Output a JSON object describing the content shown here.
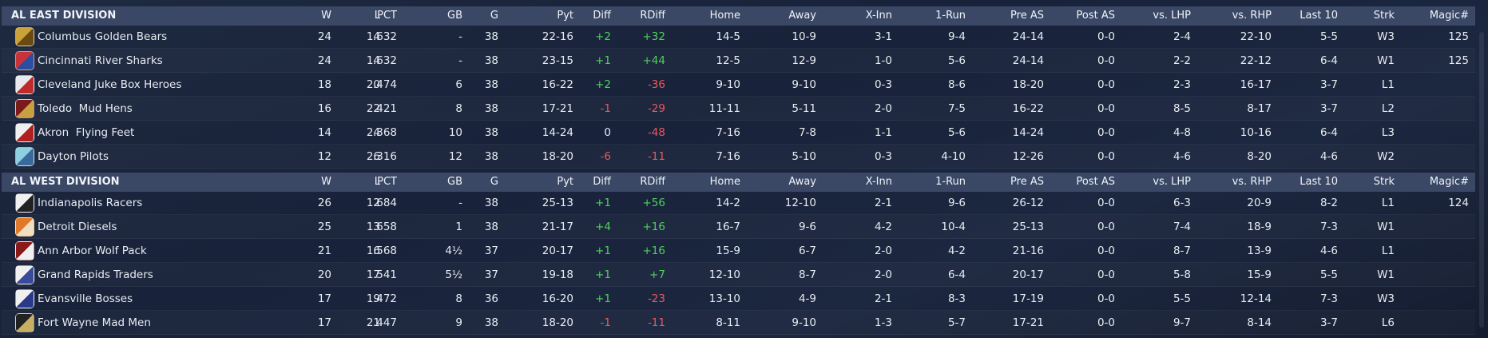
{
  "divisions": [
    {
      "title": "AL EAST DIVISION",
      "columns": [
        "W",
        "L",
        "PCT",
        "GB",
        "G",
        "Pyt",
        "Diff",
        "RDiff",
        "Home",
        "Away",
        "X-Inn",
        "1-Run",
        "Pre AS",
        "Post AS",
        "vs. LHP",
        "vs. RHP",
        "Last 10",
        "Strk",
        "Magic#"
      ],
      "rows": [
        [
          "Columbus Golden Bears",
          "24",
          "14",
          ".632",
          "-",
          "38",
          "22-16",
          "+2",
          "+32",
          "14-5",
          "10-9",
          "3-1",
          "9-4",
          "24-14",
          "0-0",
          "2-4",
          "22-10",
          "5-5",
          "W3",
          "125"
        ],
        [
          "Cincinnati River Sharks",
          "24",
          "14",
          ".632",
          "-",
          "38",
          "23-15",
          "+1",
          "+44",
          "12-5",
          "12-9",
          "1-0",
          "5-6",
          "24-14",
          "0-0",
          "2-2",
          "22-12",
          "6-4",
          "W1",
          "125"
        ],
        [
          "Cleveland Juke Box Heroes",
          "18",
          "20",
          ".474",
          "6",
          "38",
          "16-22",
          "+2",
          "-36",
          "9-10",
          "9-10",
          "0-3",
          "8-6",
          "18-20",
          "0-0",
          "2-3",
          "16-17",
          "3-7",
          "L1",
          null
        ],
        [
          "Toledo  Mud Hens",
          "16",
          "22",
          ".421",
          "8",
          "38",
          "17-21",
          "-1",
          "-29",
          "11-11",
          "5-11",
          "2-0",
          "7-5",
          "16-22",
          "0-0",
          "8-5",
          "8-17",
          "3-7",
          "L2",
          null
        ],
        [
          "Akron  Flying Feet",
          "14",
          "24",
          ".368",
          "10",
          "38",
          "14-24",
          "0",
          "-48",
          "7-16",
          "7-8",
          "1-1",
          "5-6",
          "14-24",
          "0-0",
          "4-8",
          "10-16",
          "6-4",
          "L3",
          null
        ],
        [
          "Dayton Pilots",
          "12",
          "26",
          ".316",
          "12",
          "38",
          "18-20",
          "-6",
          "-11",
          "7-16",
          "5-10",
          "0-3",
          "4-10",
          "12-26",
          "0-0",
          "4-6",
          "8-20",
          "4-6",
          "W2",
          null
        ]
      ]
    },
    {
      "title": "AL WEST DIVISION",
      "columns": [
        "W",
        "L",
        "PCT",
        "GB",
        "G",
        "Pyt",
        "Diff",
        "RDiff",
        "Home",
        "Away",
        "X-Inn",
        "1-Run",
        "Pre AS",
        "Post AS",
        "vs. LHP",
        "vs. RHP",
        "Last 10",
        "Strk",
        "Magic#"
      ],
      "rows": [
        [
          "Indianapolis Racers",
          "26",
          "12",
          ".684",
          "-",
          "38",
          "25-13",
          "+1",
          "+56",
          "14-2",
          "12-10",
          "2-1",
          "9-6",
          "26-12",
          "0-0",
          "6-3",
          "20-9",
          "8-2",
          "L1",
          "124"
        ],
        [
          "Detroit Diesels",
          "25",
          "13",
          ".658",
          "1",
          "38",
          "21-17",
          "+4",
          "+16",
          "16-7",
          "9-6",
          "4-2",
          "10-4",
          "25-13",
          "0-0",
          "7-4",
          "18-9",
          "7-3",
          "W1",
          null
        ],
        [
          "Ann Arbor Wolf Pack",
          "21",
          "16",
          ".568",
          "4½",
          "37",
          "20-17",
          "+1",
          "+16",
          "15-9",
          "6-7",
          "2-0",
          "4-2",
          "21-16",
          "0-0",
          "8-7",
          "13-9",
          "4-6",
          "L1",
          null
        ],
        [
          "Grand Rapids Traders",
          "20",
          "17",
          ".541",
          "5½",
          "37",
          "19-18",
          "+1",
          "+7",
          "12-10",
          "8-7",
          "2-0",
          "6-4",
          "20-17",
          "0-0",
          "5-8",
          "15-9",
          "5-5",
          "W1",
          null
        ],
        [
          "Evansville Bosses",
          "17",
          "19",
          ".472",
          "8",
          "36",
          "16-20",
          "+1",
          "-23",
          "13-10",
          "4-9",
          "2-1",
          "8-3",
          "17-19",
          "0-0",
          "5-5",
          "12-14",
          "7-3",
          "W3",
          null
        ],
        [
          "Fort Wayne Mad Men",
          "17",
          "21",
          ".447",
          "9",
          "38",
          "18-20",
          "-1",
          "-11",
          "8-11",
          "9-10",
          "1-3",
          "5-7",
          "17-21",
          "0-0",
          "9-7",
          "8-14",
          "3-7",
          "L6",
          null
        ]
      ]
    }
  ]
}
